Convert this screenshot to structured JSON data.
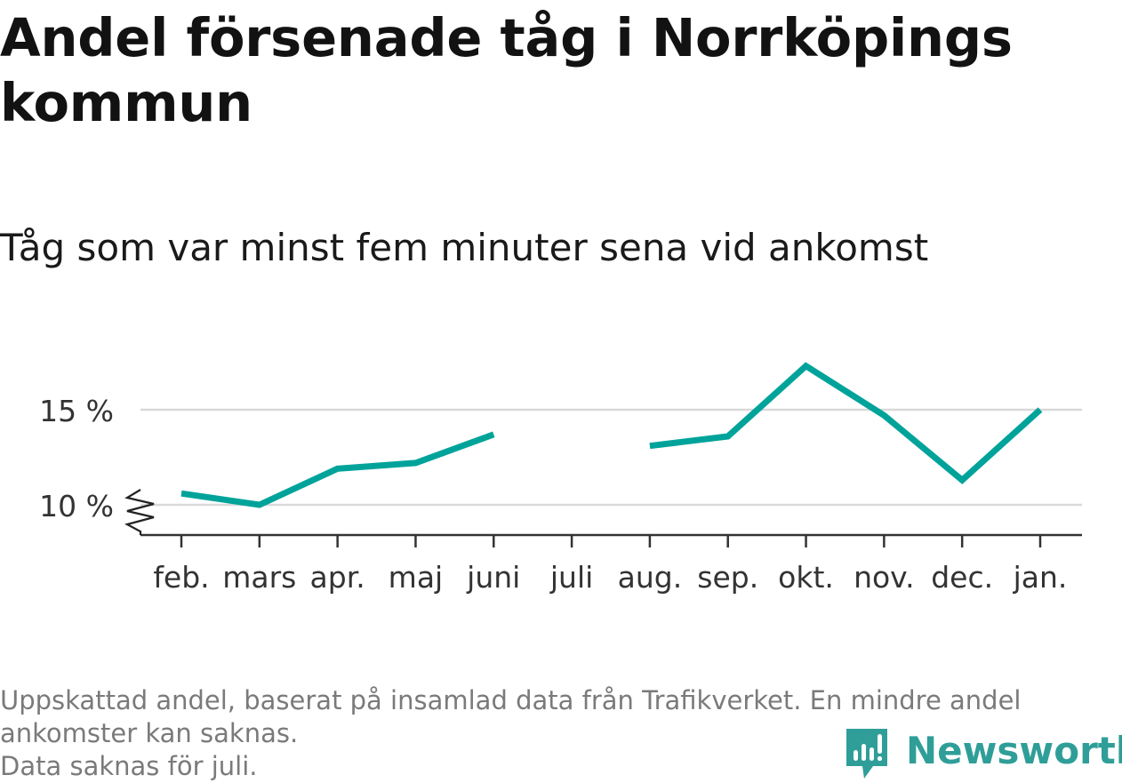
{
  "title": "Andel försenade tåg i Norrköpings kommun",
  "subtitle": "Tåg som var minst fem minuter sena vid ankomst",
  "chart_data": {
    "type": "line",
    "categories": [
      "feb.",
      "mars",
      "apr.",
      "maj",
      "juni",
      "juli",
      "aug.",
      "sep.",
      "okt.",
      "nov.",
      "dec.",
      "jan."
    ],
    "series": [
      {
        "values": [
          10.6,
          10.0,
          11.9,
          12.2,
          13.7,
          null,
          13.1,
          13.6,
          17.3,
          14.7,
          11.3,
          15.0
        ]
      }
    ],
    "y_ticks": [
      10,
      15
    ],
    "y_tick_labels": [
      "10 %",
      "15 %"
    ],
    "ylim": [
      8.5,
      17.5
    ],
    "y_axis_break": true,
    "grid": true,
    "line_color": "#00a39a"
  },
  "footnote": {
    "line1": "Uppskattad andel, baserat på insamlad data från Trafikverket. En mindre andel",
    "line2": "ankomster kan saknas.",
    "line3": "Data saknas för juli."
  },
  "brand": {
    "name": "Newsworthy",
    "icon": "bar-chart-speech-bubble-icon",
    "color": "#2f9e98"
  }
}
